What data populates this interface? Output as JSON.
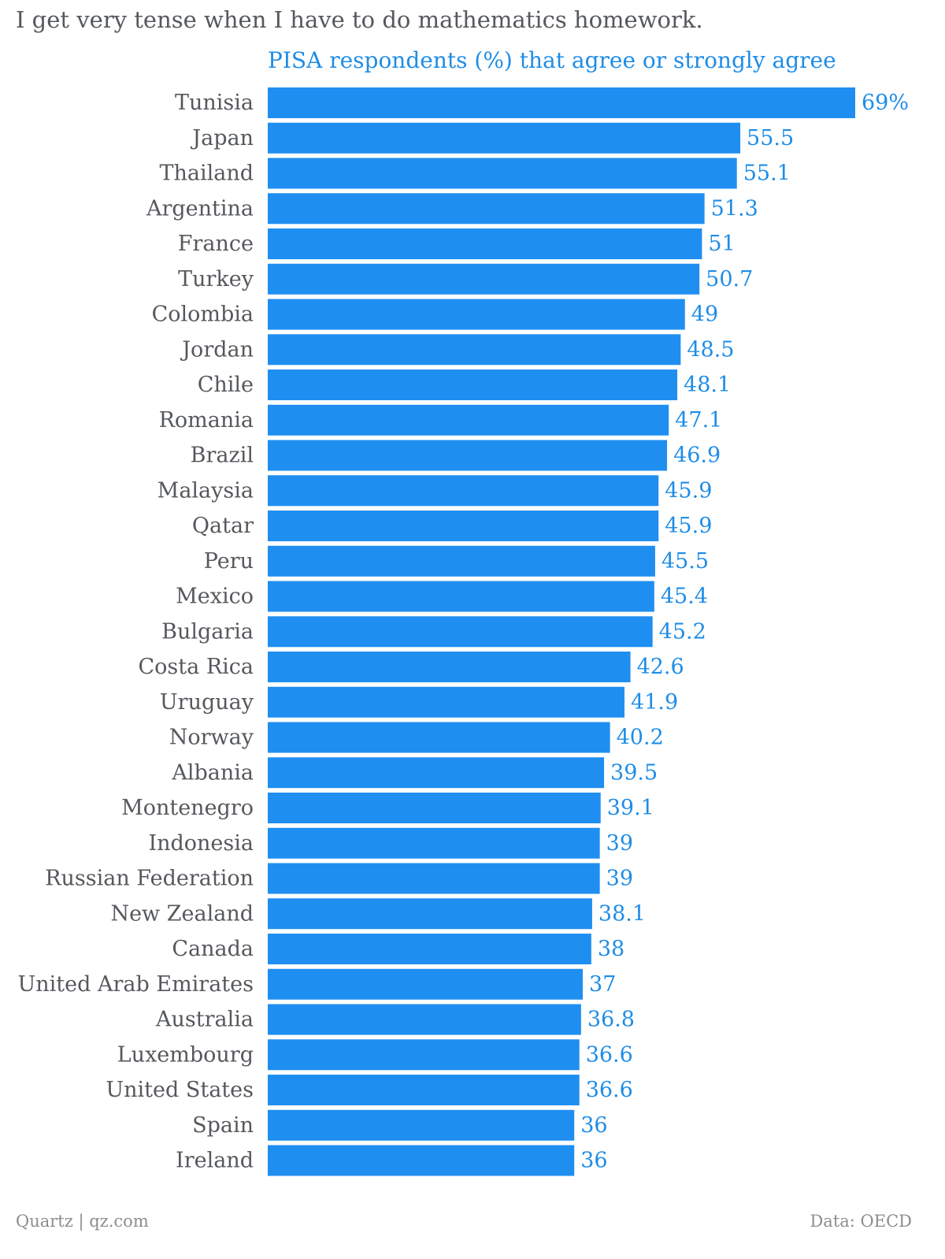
{
  "header": {
    "title": "I get very tense when I have to do mathematics homework.",
    "subtitle": "PISA respondents (%) that agree or strongly agree"
  },
  "footer": {
    "credit": "Quartz | qz.com",
    "source": "Data: OECD"
  },
  "colors": {
    "bar": "#1f8ef1",
    "value_label": "#1f8de6",
    "category_label": "#55585c"
  },
  "chart_data": {
    "type": "bar",
    "orientation": "horizontal",
    "title": "I get very tense when I have to do mathematics homework.",
    "subtitle": "PISA respondents (%) that agree or strongly agree",
    "xlabel": "",
    "ylabel": "",
    "xlim": [
      0,
      69
    ],
    "grid": false,
    "legend": "none",
    "categories": [
      "Tunisia",
      "Japan",
      "Thailand",
      "Argentina",
      "France",
      "Turkey",
      "Colombia",
      "Jordan",
      "Chile",
      "Romania",
      "Brazil",
      "Malaysia",
      "Qatar",
      "Peru",
      "Mexico",
      "Bulgaria",
      "Costa Rica",
      "Uruguay",
      "Norway",
      "Albania",
      "Montenegro",
      "Indonesia",
      "Russian Federation",
      "New Zealand",
      "Canada",
      "United Arab Emirates",
      "Australia",
      "Luxembourg",
      "United States",
      "Spain",
      "Ireland"
    ],
    "values": [
      69,
      55.5,
      55.1,
      51.3,
      51,
      50.7,
      49,
      48.5,
      48.1,
      47.1,
      46.9,
      45.9,
      45.9,
      45.5,
      45.4,
      45.2,
      42.6,
      41.9,
      40.2,
      39.5,
      39.1,
      39,
      39,
      38.1,
      38,
      37,
      36.8,
      36.6,
      36.6,
      36,
      36
    ],
    "value_labels": [
      "69%",
      "55.5",
      "55.1",
      "51.3",
      "51",
      "50.7",
      "49",
      "48.5",
      "48.1",
      "47.1",
      "46.9",
      "45.9",
      "45.9",
      "45.5",
      "45.4",
      "45.2",
      "42.6",
      "41.9",
      "40.2",
      "39.5",
      "39.1",
      "39",
      "39",
      "38.1",
      "38",
      "37",
      "36.8",
      "36.6",
      "36.6",
      "36",
      "36"
    ]
  }
}
